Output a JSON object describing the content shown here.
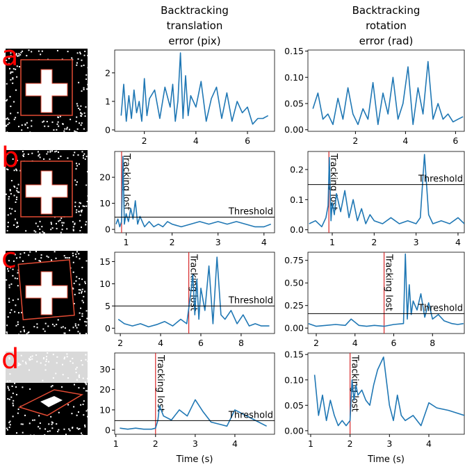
{
  "row_labels": [
    "a",
    "b",
    "c",
    "d"
  ],
  "chart_data": [
    {
      "type": "line",
      "title": "Backtracking\ntranslation\nerror (pix)",
      "color": "#1f77b4",
      "xlim": [
        0.85,
        7.05
      ],
      "ylim": [
        -0.05,
        2.8
      ],
      "xticks": [
        2,
        4,
        6
      ],
      "yticks": [
        0,
        1,
        2
      ],
      "x": [
        1.1,
        1.2,
        1.3,
        1.4,
        1.5,
        1.6,
        1.7,
        1.8,
        1.9,
        2.0,
        2.1,
        2.2,
        2.4,
        2.6,
        2.8,
        3.0,
        3.1,
        3.2,
        3.3,
        3.4,
        3.5,
        3.6,
        3.7,
        3.8,
        4.0,
        4.2,
        4.4,
        4.6,
        4.8,
        5.0,
        5.2,
        5.4,
        5.6,
        5.8,
        6.0,
        6.2,
        6.4,
        6.6,
        6.8
      ],
      "values": [
        0.5,
        1.6,
        0.3,
        1.2,
        0.4,
        1.4,
        0.6,
        1.0,
        0.3,
        1.8,
        0.5,
        1.1,
        1.4,
        0.4,
        1.5,
        0.8,
        1.6,
        0.3,
        1.0,
        2.7,
        0.4,
        1.9,
        0.5,
        1.2,
        0.8,
        1.7,
        0.3,
        1.1,
        1.5,
        0.4,
        1.3,
        0.3,
        1.0,
        0.6,
        0.8,
        0.2,
        0.4,
        0.4,
        0.5
      ]
    },
    {
      "type": "line",
      "title": "Backtracking\nrotation\nerror (rad)",
      "color": "#1f77b4",
      "xlim": [
        0.1,
        6.35
      ],
      "ylim": [
        -0.003,
        0.152
      ],
      "xticks": [
        2,
        4,
        6
      ],
      "yticks": [
        {
          "value": 0,
          "label": "0.00"
        },
        {
          "value": 0.05,
          "label": "0.05"
        },
        {
          "value": 0.1,
          "label": "0.10"
        },
        {
          "value": 0.15,
          "label": "0.15"
        }
      ],
      "x": [
        0.3,
        0.5,
        0.7,
        0.9,
        1.1,
        1.3,
        1.5,
        1.7,
        1.9,
        2.1,
        2.3,
        2.5,
        2.7,
        2.9,
        3.1,
        3.3,
        3.5,
        3.7,
        3.9,
        4.1,
        4.3,
        4.5,
        4.7,
        4.9,
        5.1,
        5.3,
        5.5,
        5.7,
        5.9,
        6.1,
        6.3
      ],
      "values": [
        0.04,
        0.07,
        0.02,
        0.03,
        0.01,
        0.06,
        0.02,
        0.08,
        0.03,
        0.01,
        0.04,
        0.02,
        0.09,
        0.01,
        0.07,
        0.03,
        0.1,
        0.02,
        0.05,
        0.12,
        0.01,
        0.08,
        0.03,
        0.13,
        0.02,
        0.05,
        0.02,
        0.03,
        0.015,
        0.02,
        0.025
      ]
    },
    {
      "type": "line",
      "color": "#1f77b4",
      "xlim": [
        0.75,
        4.23
      ],
      "ylim": [
        -1.3,
        29.9
      ],
      "xticks": [
        1,
        2,
        3,
        4
      ],
      "yticks": [
        0,
        10,
        20
      ],
      "threshold": {
        "value": 4.7,
        "label": "Threshold"
      },
      "tracking_lost": {
        "value": 0.9,
        "label": "Tracking lost"
      },
      "x": [
        0.78,
        0.82,
        0.86,
        0.9,
        0.93,
        0.96,
        1.0,
        1.05,
        1.1,
        1.15,
        1.2,
        1.25,
        1.3,
        1.4,
        1.5,
        1.6,
        1.7,
        1.8,
        1.9,
        2.0,
        2.2,
        2.4,
        2.6,
        2.8,
        3.0,
        3.2,
        3.4,
        3.6,
        3.8,
        4.0,
        4.15
      ],
      "values": [
        2,
        4,
        1,
        3,
        28,
        2,
        6,
        3,
        8,
        4,
        11,
        2,
        5,
        1,
        3,
        1,
        2,
        1,
        3,
        2,
        1,
        2,
        3,
        2,
        3,
        2,
        3,
        2,
        1,
        1,
        2
      ]
    },
    {
      "type": "line",
      "color": "#1f77b4",
      "xlim": [
        0.42,
        4.15
      ],
      "ylim": [
        -0.01,
        0.26
      ],
      "xticks": [
        1,
        2,
        3,
        4
      ],
      "yticks": [
        {
          "value": 0,
          "label": "0.0"
        },
        {
          "value": 0.1,
          "label": "0.1"
        },
        {
          "value": 0.2,
          "label": "0.2"
        }
      ],
      "threshold": {
        "value": 0.15,
        "label": "Threshold"
      },
      "tracking_lost": {
        "value": 0.92,
        "label": "Tracking lost"
      },
      "x": [
        0.45,
        0.6,
        0.75,
        0.85,
        0.9,
        0.93,
        0.97,
        1.0,
        1.05,
        1.1,
        1.2,
        1.3,
        1.4,
        1.5,
        1.6,
        1.7,
        1.8,
        1.9,
        2.0,
        2.2,
        2.4,
        2.6,
        2.8,
        3.0,
        3.1,
        3.2,
        3.3,
        3.4,
        3.6,
        3.8,
        4.0,
        4.15
      ],
      "values": [
        0.02,
        0.03,
        0.01,
        0.04,
        0.08,
        0.24,
        0.03,
        0.09,
        0.05,
        0.12,
        0.06,
        0.13,
        0.04,
        0.1,
        0.03,
        0.07,
        0.02,
        0.05,
        0.03,
        0.02,
        0.04,
        0.02,
        0.03,
        0.02,
        0.04,
        0.25,
        0.05,
        0.02,
        0.03,
        0.02,
        0.04,
        0.02
      ]
    },
    {
      "type": "line",
      "color": "#1f77b4",
      "xlim": [
        1.72,
        9.66
      ],
      "ylim": [
        -1.2,
        17.1
      ],
      "xticks": [
        2,
        4,
        6,
        8
      ],
      "yticks": [
        0,
        5,
        10,
        15
      ],
      "threshold": {
        "value": 5,
        "label": "Threshold"
      },
      "tracking_lost": {
        "value": 5.4,
        "label": "Tracking lost"
      },
      "x": [
        1.9,
        2.2,
        2.6,
        3.0,
        3.4,
        3.8,
        4.2,
        4.6,
        5.0,
        5.3,
        5.5,
        5.6,
        5.7,
        5.8,
        5.9,
        6.0,
        6.2,
        6.4,
        6.6,
        6.8,
        7.0,
        7.2,
        7.5,
        7.8,
        8.1,
        8.4,
        8.7,
        9.0,
        9.4
      ],
      "values": [
        2,
        1,
        0.5,
        1,
        0.3,
        0.8,
        1.5,
        0.5,
        2,
        1,
        8,
        12,
        3,
        11,
        2,
        9,
        4,
        14,
        1,
        16,
        3,
        2,
        4,
        1,
        3,
        0.5,
        1,
        0.5,
        0.5
      ]
    },
    {
      "type": "line",
      "color": "#1f77b4",
      "xlim": [
        1.57,
        9.64
      ],
      "ylim": [
        -0.06,
        0.84
      ],
      "xticks": [
        2,
        4,
        6,
        8
      ],
      "yticks": [
        {
          "value": 0,
          "label": "0.00"
        },
        {
          "value": 0.25,
          "label": "0.25"
        },
        {
          "value": 0.5,
          "label": "0.50"
        },
        {
          "value": 0.75,
          "label": "0.75"
        }
      ],
      "threshold": {
        "value": 0.16,
        "label": "Threshold"
      },
      "tracking_lost": {
        "value": 5.5,
        "label": "Tracking lost"
      },
      "x": [
        1.6,
        2.0,
        2.5,
        3.0,
        3.5,
        3.8,
        4.2,
        4.6,
        5.0,
        5.5,
        6.0,
        6.5,
        6.6,
        6.7,
        6.8,
        6.9,
        7.0,
        7.2,
        7.4,
        7.6,
        7.8,
        8.0,
        8.3,
        8.6,
        9.0,
        9.3,
        9.6
      ],
      "values": [
        0.05,
        0.02,
        0.03,
        0.04,
        0.03,
        0.1,
        0.03,
        0.02,
        0.03,
        0.02,
        0.04,
        0.05,
        0.82,
        0.1,
        0.48,
        0.15,
        0.3,
        0.2,
        0.38,
        0.12,
        0.28,
        0.1,
        0.15,
        0.08,
        0.05,
        0.04,
        0.05
      ]
    },
    {
      "type": "line",
      "x_label": "Time (s)",
      "color": "#1f77b4",
      "xlim": [
        0.97,
        5.0
      ],
      "ylim": [
        -2,
        38
      ],
      "xticks": [
        1,
        2,
        3,
        4
      ],
      "yticks": [
        0,
        10,
        20,
        30
      ],
      "threshold": {
        "value": 4.7,
        "label": "Threshold"
      },
      "tracking_lost": {
        "value": 2.0,
        "label": "Tracking lost"
      },
      "x": [
        1.1,
        1.3,
        1.5,
        1.7,
        1.9,
        2.0,
        2.03,
        2.06,
        2.1,
        2.2,
        2.4,
        2.6,
        2.8,
        3.0,
        3.2,
        3.4,
        3.6,
        3.8,
        4.0,
        4.2,
        4.4,
        4.6,
        4.8
      ],
      "values": [
        1,
        0.5,
        1,
        0.5,
        0.5,
        1,
        3,
        5,
        12,
        7,
        5,
        10,
        7,
        15,
        9,
        4,
        3,
        2,
        10,
        8,
        6,
        4,
        2
      ]
    },
    {
      "type": "line",
      "x_label": "Time (s)",
      "color": "#1f77b4",
      "xlim": [
        0.93,
        4.9
      ],
      "ylim": [
        -0.007,
        0.153
      ],
      "xticks": [
        1,
        2,
        3,
        4
      ],
      "yticks": [
        {
          "value": 0,
          "label": "0.00"
        },
        {
          "value": 0.05,
          "label": "0.05"
        },
        {
          "value": 0.1,
          "label": "0.10"
        },
        {
          "value": 0.15,
          "label": "0.15"
        }
      ],
      "tracking_lost": {
        "value": 2.0,
        "label": "Tracking lost"
      },
      "x": [
        1.1,
        1.2,
        1.3,
        1.4,
        1.5,
        1.6,
        1.7,
        1.8,
        1.9,
        2.0,
        2.05,
        2.1,
        2.15,
        2.2,
        2.3,
        2.4,
        2.5,
        2.6,
        2.7,
        2.85,
        3.0,
        3.1,
        3.2,
        3.3,
        3.4,
        3.6,
        3.8,
        4.0,
        4.2,
        4.5,
        4.9
      ],
      "values": [
        0.11,
        0.03,
        0.07,
        0.02,
        0.06,
        0.03,
        0.01,
        0.02,
        0.01,
        0.02,
        0.1,
        0.06,
        0.09,
        0.07,
        0.08,
        0.06,
        0.05,
        0.09,
        0.12,
        0.145,
        0.05,
        0.02,
        0.07,
        0.03,
        0.02,
        0.03,
        0.01,
        0.055,
        0.045,
        0.04,
        0.03
      ]
    }
  ]
}
